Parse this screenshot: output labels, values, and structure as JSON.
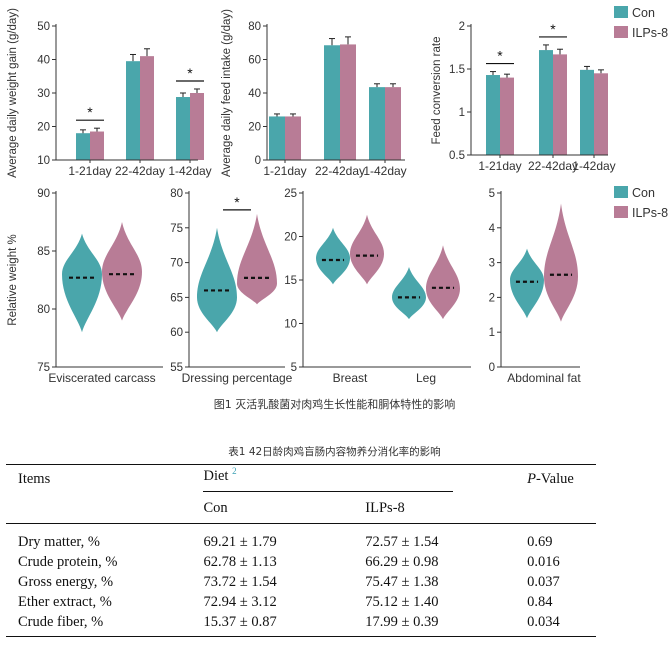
{
  "colors": {
    "con": "#4aa6ab",
    "ilps": "#b87c96",
    "axis": "#333333",
    "mean": "#111111"
  },
  "legend": {
    "con": "Con",
    "ilps": "ILPs-8"
  },
  "chart_data": [
    {
      "type": "bar",
      "ylabel": "Average daily weight gain (g/day)",
      "ylim": [
        10,
        50
      ],
      "yticks": [
        10,
        20,
        30,
        40,
        50
      ],
      "categories": [
        "1-21day",
        "22-42day",
        "1-42day"
      ],
      "series": [
        {
          "name": "Con",
          "values": [
            18,
            39.5,
            28.8
          ],
          "errors": [
            1,
            2,
            1.2
          ]
        },
        {
          "name": "ILPs-8",
          "values": [
            18.5,
            41,
            30
          ],
          "errors": [
            1,
            2.2,
            1.2
          ]
        }
      ],
      "significance": [
        0,
        2
      ]
    },
    {
      "type": "bar",
      "ylabel": "Average daily feed intake (g/day)",
      "ylim": [
        0,
        80
      ],
      "yticks": [
        0,
        20,
        40,
        60,
        80
      ],
      "categories": [
        "1-21day",
        "22-42day",
        "1-42day"
      ],
      "series": [
        {
          "name": "Con",
          "values": [
            26,
            68.5,
            43.5
          ],
          "errors": [
            1.5,
            4,
            2
          ]
        },
        {
          "name": "ILPs-8",
          "values": [
            26,
            69,
            43.5
          ],
          "errors": [
            1.5,
            4.5,
            2
          ]
        }
      ],
      "significance": []
    },
    {
      "type": "bar",
      "ylabel": "Feed conversion rate",
      "ylim": [
        0.5,
        2.0
      ],
      "yticks": [
        0.5,
        1.0,
        1.5,
        2.0
      ],
      "categories": [
        "1-21day",
        "22-42day",
        "1-42day"
      ],
      "series": [
        {
          "name": "Con",
          "values": [
            1.43,
            1.72,
            1.49
          ],
          "errors": [
            0.04,
            0.06,
            0.04
          ]
        },
        {
          "name": "ILPs-8",
          "values": [
            1.4,
            1.67,
            1.45
          ],
          "errors": [
            0.04,
            0.06,
            0.04
          ]
        }
      ],
      "significance": [
        0,
        1
      ]
    },
    {
      "type": "violin",
      "ylabel": "Relative weight %",
      "ylim": [
        75,
        90
      ],
      "yticks": [
        75,
        80,
        85,
        90
      ],
      "categories": [
        "Eviscerated carcass"
      ],
      "series": [
        {
          "name": "Con",
          "mean": [
            82.7
          ],
          "min": [
            78
          ],
          "max": [
            86.5
          ],
          "peak": [
            83
          ]
        },
        {
          "name": "ILPs-8",
          "mean": [
            83
          ],
          "min": [
            79
          ],
          "max": [
            87.5
          ],
          "peak": [
            83.2
          ]
        }
      ],
      "significance": []
    },
    {
      "type": "violin",
      "ylim": [
        55,
        80
      ],
      "yticks": [
        55,
        60,
        65,
        70,
        75,
        80
      ],
      "categories": [
        "Dressing percentage"
      ],
      "series": [
        {
          "name": "Con",
          "mean": [
            66
          ],
          "min": [
            60
          ],
          "max": [
            75
          ],
          "peak": [
            65
          ]
        },
        {
          "name": "ILPs-8",
          "mean": [
            67.8
          ],
          "min": [
            64
          ],
          "max": [
            77
          ],
          "peak": [
            67
          ]
        }
      ],
      "significance": [
        0
      ]
    },
    {
      "type": "violin",
      "ylim": [
        5,
        25
      ],
      "yticks": [
        5,
        10,
        15,
        20,
        25
      ],
      "categories": [
        "Breast",
        "Leg"
      ],
      "series": [
        {
          "name": "Con",
          "mean": [
            17.3,
            13
          ],
          "min": [
            14.5,
            10.5
          ],
          "max": [
            21,
            16.5
          ],
          "peak": [
            17.5,
            13
          ]
        },
        {
          "name": "ILPs-8",
          "mean": [
            17.8,
            14.1
          ],
          "min": [
            14.5,
            10.5
          ],
          "max": [
            22.5,
            19
          ],
          "peak": [
            18,
            14
          ]
        }
      ],
      "significance": []
    },
    {
      "type": "violin",
      "ylim": [
        0,
        5
      ],
      "yticks": [
        0,
        1,
        2,
        3,
        4,
        5
      ],
      "categories": [
        "Abdominal fat"
      ],
      "series": [
        {
          "name": "Con",
          "mean": [
            2.45
          ],
          "min": [
            1.4
          ],
          "max": [
            3.4
          ],
          "peak": [
            2.5
          ]
        },
        {
          "name": "ILPs-8",
          "mean": [
            2.65
          ],
          "min": [
            1.3
          ],
          "max": [
            4.7
          ],
          "peak": [
            2.6
          ]
        }
      ],
      "significance": []
    }
  ],
  "figure_caption": "图1 灭活乳酸菌对肉鸡生长性能和胴体特性的影响",
  "table": {
    "caption": "表1 42日龄肉鸡盲肠内容物养分消化率的影响",
    "col_items": "Items",
    "col_diet": "Diet",
    "diet_sup": "2",
    "col_p_italic": "P",
    "col_p_rest": "-Value",
    "sub_con": "Con",
    "sub_ilps": "ILPs-8",
    "rows": [
      {
        "item": "Dry matter, %",
        "con": "69.21 ± 1.79",
        "ilps": "72.57 ± 1.54",
        "p": "0.69"
      },
      {
        "item": "Crude protein, %",
        "con": "62.78 ± 1.13",
        "ilps": "66.29 ± 0.98",
        "p": "0.016"
      },
      {
        "item": "Gross energy, %",
        "con": "73.72 ± 1.54",
        "ilps": "75.47 ± 1.38",
        "p": "0.037"
      },
      {
        "item": "Ether extract, %",
        "con": "72.94 ± 3.12",
        "ilps": "75.12 ± 1.40",
        "p": "0.84"
      },
      {
        "item": "Crude fiber, %",
        "con": "15.37 ± 0.87",
        "ilps": "17.99 ± 0.39",
        "p": "0.034"
      }
    ]
  }
}
